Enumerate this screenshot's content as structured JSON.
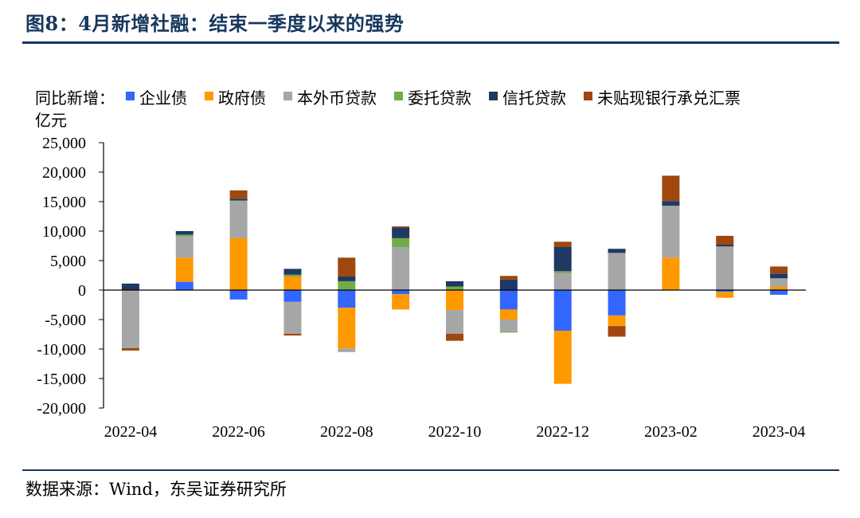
{
  "figure": {
    "title": "图8：4月新增社融：结束一季度以来的强势",
    "source": "数据来源：Wind，东吴证券研究所"
  },
  "chart_data": {
    "type": "bar",
    "stacked": true,
    "legend_prefix": "同比新增：",
    "ylabel": "亿元",
    "ylim": [
      -20000,
      25000
    ],
    "yticks": [
      25000,
      20000,
      15000,
      10000,
      5000,
      0,
      -5000,
      -10000,
      -15000,
      -20000
    ],
    "ytick_labels": [
      "25,000",
      "20,000",
      "15,000",
      "10,000",
      "5,000",
      "0",
      "-5,000",
      "-10,000",
      "-15,000",
      "-20,000"
    ],
    "categories": [
      "2022-04",
      "2022-05",
      "2022-06",
      "2022-07",
      "2022-08",
      "2022-09",
      "2022-10",
      "2022-11",
      "2022-12",
      "2023-01",
      "2023-02",
      "2023-03",
      "2023-04"
    ],
    "xtick_labels": [
      "2022-04",
      "2022-06",
      "2022-08",
      "2022-10",
      "2022-12",
      "2023-02",
      "2023-04"
    ],
    "series": [
      {
        "name": "企业债",
        "color": "#3366FF",
        "values": [
          -100,
          1400,
          -1600,
          -2000,
          -3000,
          -700,
          -100,
          -3300,
          -6900,
          -4300,
          0,
          -300,
          -800
        ]
      },
      {
        "name": "政府债",
        "color": "#FF9900",
        "values": [
          -50,
          4100,
          8800,
          2300,
          -6900,
          -2600,
          -3300,
          -1700,
          -9000,
          -1800,
          5500,
          -1000,
          600
        ]
      },
      {
        "name": "本外币贷款",
        "color": "#A6A6A6",
        "values": [
          -9600,
          3600,
          6300,
          -5400,
          -600,
          7300,
          -4000,
          -2000,
          2900,
          6300,
          8800,
          7400,
          1400
        ]
      },
      {
        "name": "委托贷款",
        "color": "#70AD47",
        "values": [
          -100,
          300,
          100,
          300,
          1500,
          1500,
          600,
          -200,
          300,
          0,
          0,
          0,
          0
        ]
      },
      {
        "name": "信托贷款",
        "color": "#1F3864",
        "values": [
          1100,
          600,
          300,
          1000,
          800,
          1800,
          900,
          1800,
          4100,
          700,
          800,
          300,
          800
        ]
      },
      {
        "name": "未贴现银行承兑汇票",
        "color": "#A0470F",
        "values": [
          -400,
          0,
          1400,
          -300,
          3200,
          200,
          -1200,
          600,
          900,
          -1800,
          4300,
          1500,
          1200
        ]
      }
    ],
    "grid": false,
    "legend_position": "top"
  }
}
